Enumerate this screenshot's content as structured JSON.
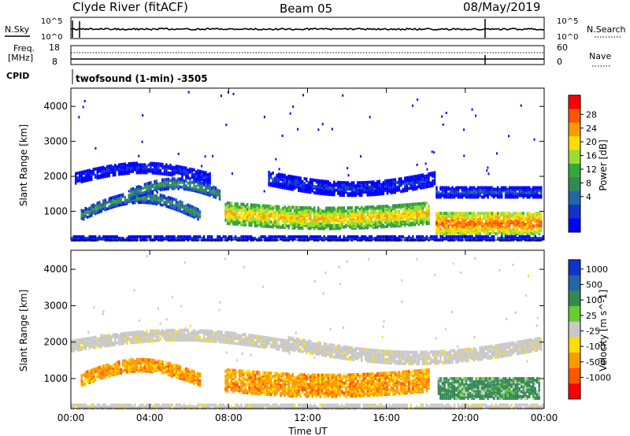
{
  "header": {
    "station": "Clyde River (fitACF)",
    "beam": "Beam 05",
    "date": "08/May/2019"
  },
  "small_panels": {
    "nsky_label": "N.Sky",
    "nsearch_label": "N.Search",
    "freq_label_1": "Freq.",
    "freq_label_2": "[MHz]",
    "nave_label": "Nave",
    "cpid_label": "CPID",
    "cpid_value": "twofsound (1-min) -3505",
    "noise_ticks_left": [
      "10^5",
      "10^0"
    ],
    "noise_ticks_right": [
      "10^5",
      "10^0"
    ],
    "freq_ticks_left": [
      "18",
      "8"
    ],
    "nave_ticks_right": [
      "60",
      "0"
    ]
  },
  "chart_data": [
    {
      "type": "heatmap",
      "name": "power",
      "ylabel": "Slant Range [km]",
      "colorbar_label": "Power [dB]",
      "colorbar_ticks": [
        "28",
        "24",
        "20",
        "16",
        "12",
        "8",
        "4"
      ],
      "colorbar_colors": [
        "#ff0000",
        "#ff5500",
        "#ff9900",
        "#ffdd00",
        "#99dd33",
        "#33aa33",
        "#338855",
        "#2266aa",
        "#1133cc",
        "#0000ff"
      ],
      "y_ticks": [
        "4000",
        "3000",
        "2000",
        "1000"
      ],
      "ylim": [
        200,
        4500
      ],
      "xlim_hours": [
        0,
        24
      ],
      "bands": [
        {
          "x": [
            0.2,
            7.0
          ],
          "r0": 1850,
          "r1": 2150,
          "rise": 300,
          "base": 4
        },
        {
          "x": [
            0.5,
            6.5
          ],
          "r0": 800,
          "r1": 1100,
          "rise": 500,
          "base": 12
        },
        {
          "x": [
            3.0,
            7.5
          ],
          "r0": 1400,
          "r1": 1700,
          "rise": 300,
          "base": 12
        },
        {
          "x": [
            7.8,
            18.2
          ],
          "r0": 700,
          "r1": 1300,
          "rise": -150,
          "base": 22
        },
        {
          "x": [
            10.0,
            18.5
          ],
          "r0": 1800,
          "r1": 2200,
          "rise": -300,
          "base": 4
        },
        {
          "x": [
            18.5,
            23.9
          ],
          "r0": 400,
          "r1": 1000,
          "rise": 0,
          "base": 26
        },
        {
          "x": [
            18.5,
            23.9
          ],
          "r0": 1450,
          "r1": 1750,
          "rise": 0,
          "base": 6
        },
        {
          "x": [
            0.0,
            24.0
          ],
          "r0": 180,
          "r1": 320,
          "rise": 0,
          "base": 6
        }
      ]
    },
    {
      "type": "heatmap",
      "name": "velocity",
      "ylabel": "Slant Range [km]",
      "colorbar_label": "Velocity [m s^-1]",
      "colorbar_ticks": [
        "1000",
        "500",
        "100",
        "25",
        "-25",
        "-100",
        "-500",
        "-1000"
      ],
      "colorbar_colors": [
        "#1133cc",
        "#2266aa",
        "#338855",
        "#66cc33",
        "#c8c8c8",
        "#ffdd00",
        "#ff9900",
        "#ff5500",
        "#ff0000"
      ],
      "y_ticks": [
        "4000",
        "3000",
        "2000",
        "1000"
      ],
      "x_ticks": [
        "00:00",
        "04:00",
        "08:00",
        "12:00",
        "16:00",
        "20:00",
        "00:00"
      ],
      "xlabel": "Time UT",
      "ylim": [
        200,
        4500
      ],
      "xlim_hours": [
        0,
        24
      ],
      "bands": [
        {
          "x": [
            0.0,
            11.0
          ],
          "r0": 1800,
          "r1": 2100,
          "rise": 300,
          "vel": "gray"
        },
        {
          "x": [
            11.0,
            23.9
          ],
          "r0": 1850,
          "r1": 2200,
          "rise": -400,
          "vel": "gray"
        },
        {
          "x": [
            0.5,
            6.5
          ],
          "r0": 850,
          "r1": 1200,
          "rise": 400,
          "vel": "orange"
        },
        {
          "x": [
            7.8,
            18.2
          ],
          "r0": 700,
          "r1": 1300,
          "rise": -150,
          "vel": "orange"
        },
        {
          "x": [
            18.6,
            23.8
          ],
          "r0": 500,
          "r1": 1050,
          "rise": 0,
          "vel": "green"
        },
        {
          "x": [
            0.0,
            24.0
          ],
          "r0": 180,
          "r1": 320,
          "rise": 0,
          "vel": "gray"
        }
      ]
    }
  ]
}
